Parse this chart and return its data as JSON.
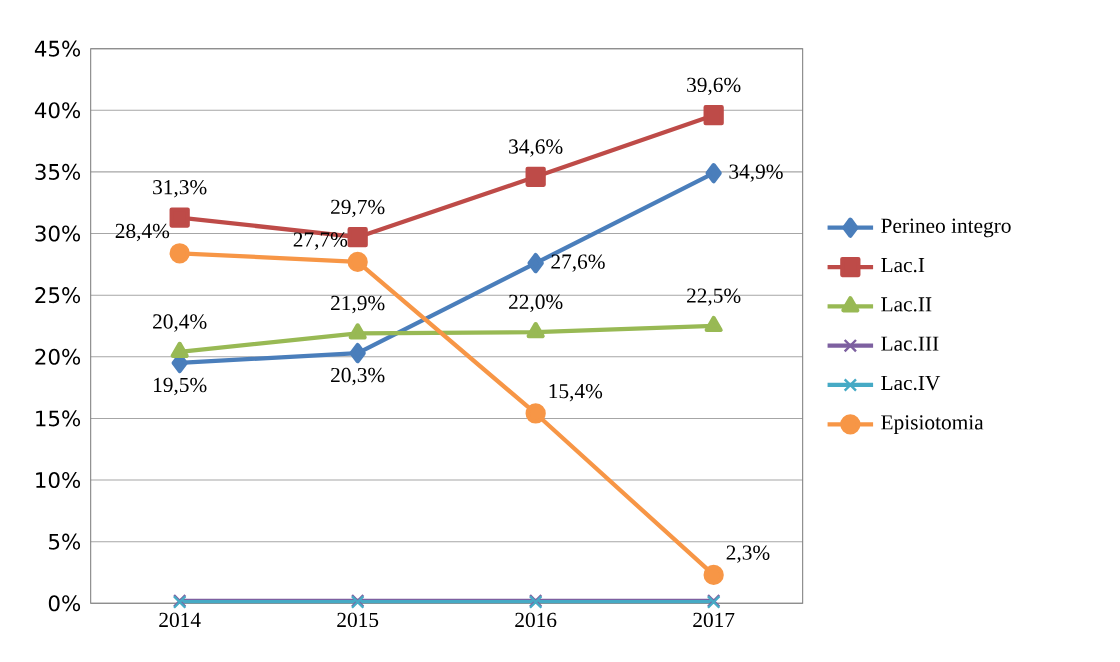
{
  "chart_data": {
    "type": "line",
    "categories": [
      "2014",
      "2015",
      "2016",
      "2017"
    ],
    "series": [
      {
        "name": "Perineo integro",
        "color": "#4a7ebb",
        "marker": "diamond",
        "values": [
          19.5,
          20.3,
          27.6,
          34.9
        ],
        "value_labels": [
          "19,5%",
          "20,3%",
          "27,6%",
          "34,9%"
        ]
      },
      {
        "name": "Lac.I",
        "color": "#be4b48",
        "marker": "square",
        "values": [
          31.3,
          29.7,
          34.6,
          39.6
        ],
        "value_labels": [
          "31,3%",
          "29,7%",
          "34,6%",
          "39,6%"
        ]
      },
      {
        "name": "Lac.II",
        "color": "#98b954",
        "marker": "triangle",
        "values": [
          20.4,
          21.9,
          22.0,
          22.5
        ],
        "value_labels": [
          "20,4%",
          "21,9%",
          "22,0%",
          "22,5%"
        ]
      },
      {
        "name": "Lac.III",
        "color": "#7d60a0",
        "marker": "cross",
        "values": [
          0.2,
          0.2,
          0.2,
          0.2
        ]
      },
      {
        "name": "Lac.IV",
        "color": "#46aac5",
        "marker": "cross",
        "values": [
          0.1,
          0.1,
          0.1,
          0.1
        ]
      },
      {
        "name": "Episiotomia",
        "color": "#f79646",
        "marker": "circle",
        "values": [
          28.4,
          27.7,
          15.4,
          2.3
        ],
        "value_labels": [
          "28,4%",
          "27,7%",
          "15,4%",
          "2,3%"
        ]
      }
    ],
    "ylim": [
      0,
      45
    ],
    "yticks": [
      {
        "value": 0,
        "label": "0%"
      },
      {
        "value": 5,
        "label": "5%"
      },
      {
        "value": 10,
        "label": "10%"
      },
      {
        "value": 15,
        "label": "15%"
      },
      {
        "value": 20,
        "label": "20%"
      },
      {
        "value": 25,
        "label": "25%"
      },
      {
        "value": 30,
        "label": "30%"
      },
      {
        "value": 35,
        "label": "35%"
      },
      {
        "value": 40,
        "label": "40%"
      },
      {
        "value": 45,
        "label": "45%"
      }
    ],
    "grid": "y",
    "legend": "right",
    "line_style": "solid"
  }
}
